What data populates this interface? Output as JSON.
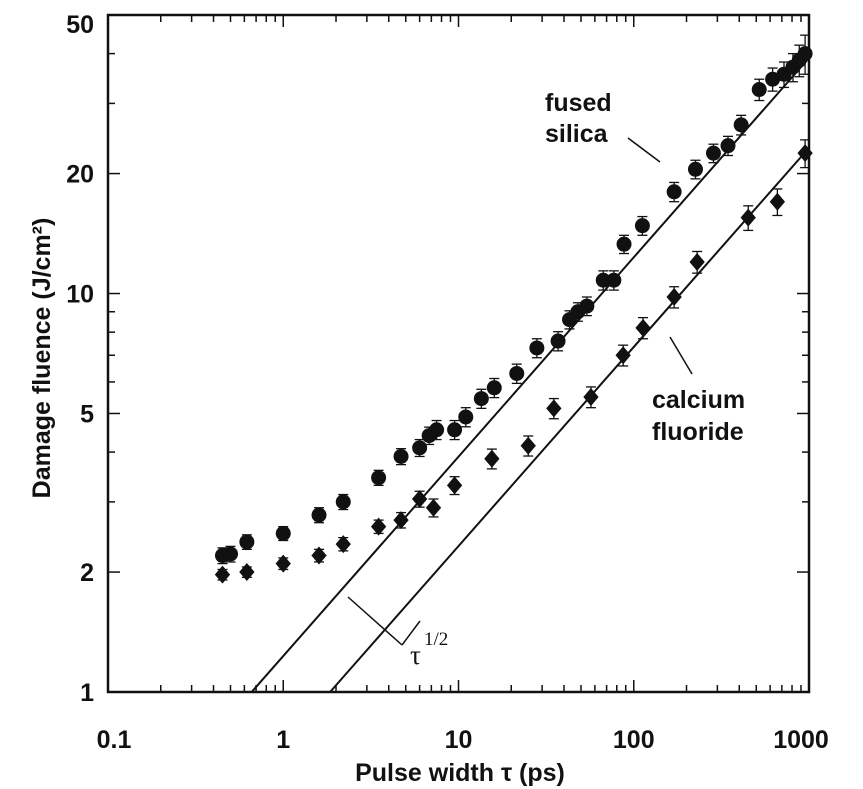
{
  "chart_data": {
    "type": "scatter",
    "xlabel": "Pulse width τ (ps)",
    "ylabel": "Damage fluence (J/cm²)",
    "xscale": "log",
    "yscale": "log",
    "xlim": [
      0.1,
      1000
    ],
    "ylim": [
      1,
      50
    ],
    "x_ticks": [
      {
        "value": 0.1,
        "label": "0.1"
      },
      {
        "value": 1,
        "label": "1"
      },
      {
        "value": 10,
        "label": "10"
      },
      {
        "value": 100,
        "label": "100"
      },
      {
        "value": 1000,
        "label": "1000"
      }
    ],
    "y_ticks": [
      {
        "value": 1,
        "label": "1"
      },
      {
        "value": 2,
        "label": "2"
      },
      {
        "value": 5,
        "label": "5"
      },
      {
        "value": 10,
        "label": "10"
      },
      {
        "value": 20,
        "label": "20"
      },
      {
        "value": 50,
        "label": "50"
      }
    ],
    "series": [
      {
        "name": "fused silica",
        "marker": "circle",
        "points": [
          {
            "x": 0.45,
            "y": 2.2,
            "err": 0.1
          },
          {
            "x": 0.5,
            "y": 2.22,
            "err": 0.1
          },
          {
            "x": 0.62,
            "y": 2.38,
            "err": 0.1
          },
          {
            "x": 1.0,
            "y": 2.5,
            "err": 0.1
          },
          {
            "x": 1.6,
            "y": 2.78,
            "err": 0.12
          },
          {
            "x": 2.2,
            "y": 3.0,
            "err": 0.13
          },
          {
            "x": 3.5,
            "y": 3.45,
            "err": 0.15
          },
          {
            "x": 4.7,
            "y": 3.9,
            "err": 0.18
          },
          {
            "x": 6.0,
            "y": 4.1,
            "err": 0.2
          },
          {
            "x": 6.8,
            "y": 4.4,
            "err": 0.22
          },
          {
            "x": 7.5,
            "y": 4.55,
            "err": 0.25
          },
          {
            "x": 9.5,
            "y": 4.55,
            "err": 0.25
          },
          {
            "x": 11,
            "y": 4.9,
            "err": 0.27
          },
          {
            "x": 13.5,
            "y": 5.45,
            "err": 0.3
          },
          {
            "x": 16,
            "y": 5.8,
            "err": 0.32
          },
          {
            "x": 21.5,
            "y": 6.3,
            "err": 0.35
          },
          {
            "x": 28,
            "y": 7.3,
            "err": 0.4
          },
          {
            "x": 37,
            "y": 7.6,
            "err": 0.42
          },
          {
            "x": 43,
            "y": 8.6,
            "err": 0.45
          },
          {
            "x": 48,
            "y": 9.0,
            "err": 0.48
          },
          {
            "x": 54,
            "y": 9.3,
            "err": 0.5
          },
          {
            "x": 67,
            "y": 10.8,
            "err": 0.6
          },
          {
            "x": 77,
            "y": 10.8,
            "err": 0.6
          },
          {
            "x": 88,
            "y": 13.3,
            "err": 0.7
          },
          {
            "x": 112,
            "y": 14.8,
            "err": 0.8
          },
          {
            "x": 170,
            "y": 18.0,
            "err": 1.0
          },
          {
            "x": 225,
            "y": 20.5,
            "err": 1.1
          },
          {
            "x": 285,
            "y": 22.5,
            "err": 1.2
          },
          {
            "x": 345,
            "y": 23.5,
            "err": 1.3
          },
          {
            "x": 410,
            "y": 26.5,
            "err": 1.5
          },
          {
            "x": 520,
            "y": 32.5,
            "err": 2.0
          },
          {
            "x": 620,
            "y": 34.5,
            "err": 2.3
          },
          {
            "x": 720,
            "y": 35.5,
            "err": 2.6
          },
          {
            "x": 810,
            "y": 37.0,
            "err": 3.0
          },
          {
            "x": 880,
            "y": 38.5,
            "err": 3.5
          },
          {
            "x": 950,
            "y": 40.0,
            "err": 4.5
          }
        ]
      },
      {
        "name": "calcium fluoride",
        "marker": "diamond",
        "points": [
          {
            "x": 0.45,
            "y": 1.97,
            "err": 0.06
          },
          {
            "x": 0.62,
            "y": 2.0,
            "err": 0.06
          },
          {
            "x": 1.0,
            "y": 2.1,
            "err": 0.07
          },
          {
            "x": 1.6,
            "y": 2.2,
            "err": 0.08
          },
          {
            "x": 2.2,
            "y": 2.35,
            "err": 0.09
          },
          {
            "x": 3.5,
            "y": 2.6,
            "err": 0.1
          },
          {
            "x": 4.7,
            "y": 2.7,
            "err": 0.12
          },
          {
            "x": 6.0,
            "y": 3.05,
            "err": 0.14
          },
          {
            "x": 7.2,
            "y": 2.9,
            "err": 0.15
          },
          {
            "x": 9.5,
            "y": 3.3,
            "err": 0.17
          },
          {
            "x": 15.5,
            "y": 3.85,
            "err": 0.22
          },
          {
            "x": 25,
            "y": 4.15,
            "err": 0.24
          },
          {
            "x": 35,
            "y": 5.15,
            "err": 0.3
          },
          {
            "x": 57,
            "y": 5.5,
            "err": 0.33
          },
          {
            "x": 87,
            "y": 7.0,
            "err": 0.42
          },
          {
            "x": 113,
            "y": 8.2,
            "err": 0.5
          },
          {
            "x": 170,
            "y": 9.8,
            "err": 0.6
          },
          {
            "x": 230,
            "y": 12.0,
            "err": 0.75
          },
          {
            "x": 450,
            "y": 15.5,
            "err": 1.1
          },
          {
            "x": 660,
            "y": 17.0,
            "err": 1.3
          },
          {
            "x": 950,
            "y": 22.5,
            "err": 1.8
          }
        ]
      }
    ],
    "fit_lines": [
      {
        "name": "fused silica fit",
        "x": [
          0.66,
          1000
        ],
        "y": [
          1,
          39
        ]
      },
      {
        "name": "calcium fluoride fit",
        "x": [
          1.85,
          1000
        ],
        "y": [
          1,
          23.2
        ]
      }
    ],
    "annotations": {
      "fused_silica_line1": "fused",
      "fused_silica_line2": "silica",
      "calcium_fluoride_line1": "calcium",
      "calcium_fluoride_line2": "fluoride",
      "tau_symbol": "τ",
      "tau_exponent": "1/2"
    },
    "grid": false,
    "legend": "none"
  }
}
